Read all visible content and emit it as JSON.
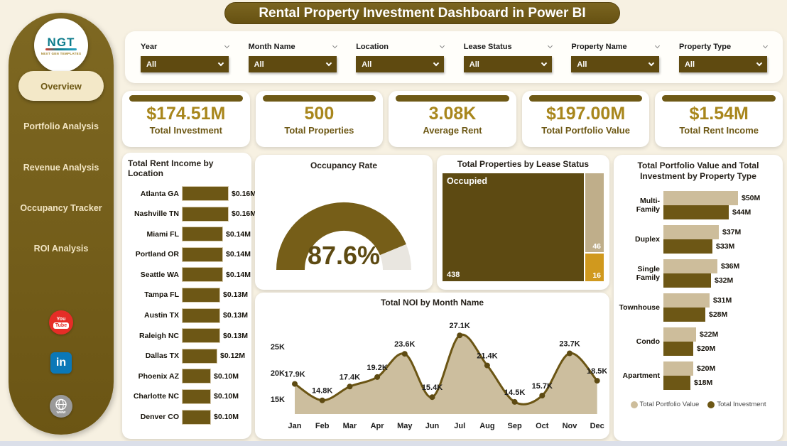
{
  "title": "Rental Property Investment Dashboard in Power BI",
  "logo": {
    "text": "NGT",
    "subtext": "NEXT GEN TEMPLATES"
  },
  "sidebar": {
    "items": [
      {
        "label": "Overview",
        "active": true
      },
      {
        "label": "Portfolio Analysis",
        "active": false
      },
      {
        "label": "Revenue Analysis",
        "active": false
      },
      {
        "label": "Occupancy Tracker",
        "active": false
      },
      {
        "label": "ROI Analysis",
        "active": false
      }
    ],
    "social": [
      {
        "name": "youtube",
        "you": "You",
        "tube": "Tube"
      },
      {
        "name": "linkedin",
        "text": "in"
      },
      {
        "name": "website",
        "text": "www"
      }
    ]
  },
  "filters": [
    {
      "label": "Year",
      "value": "All"
    },
    {
      "label": "Month Name",
      "value": "All"
    },
    {
      "label": "Location",
      "value": "All"
    },
    {
      "label": "Lease Status",
      "value": "All"
    },
    {
      "label": "Property Name",
      "value": "All"
    },
    {
      "label": "Property Type",
      "value": "All"
    }
  ],
  "kpis": [
    {
      "value": "$174.51M",
      "label": "Total Investment"
    },
    {
      "value": "500",
      "label": "Total Properties"
    },
    {
      "value": "3.08K",
      "label": "Average Rent"
    },
    {
      "value": "$197.00M",
      "label": "Total Portfolio Value"
    },
    {
      "value": "$1.54M",
      "label": "Total Rent Income"
    }
  ],
  "colors": {
    "dark_gold": "#76601a",
    "deep_gold": "#5f4a10",
    "gold_text": "#a8861c",
    "tan": "#cdbd9b",
    "orange": "#d0991e",
    "cream_bg": "#f7f1e2",
    "active_pill": "#f3e8c8",
    "gauge_track": "#e9e6e0"
  },
  "chart_data": [
    {
      "id": "rent_by_location",
      "type": "bar",
      "orientation": "horizontal",
      "title": "Total Rent Income by Location",
      "categories": [
        "Atlanta GA",
        "Nashville TN",
        "Miami FL",
        "Portland OR",
        "Seattle WA",
        "Tampa FL",
        "Austin TX",
        "Raleigh NC",
        "Dallas TX",
        "Phoenix AZ",
        "Charlotte NC",
        "Denver CO"
      ],
      "values": [
        0.16,
        0.16,
        0.14,
        0.14,
        0.14,
        0.13,
        0.13,
        0.13,
        0.12,
        0.1,
        0.1,
        0.1
      ],
      "labels": [
        "$0.16M",
        "$0.16M",
        "$0.14M",
        "$0.14M",
        "$0.14M",
        "$0.13M",
        "$0.13M",
        "$0.13M",
        "$0.12M",
        "$0.10M",
        "$0.10M",
        "$0.10M"
      ],
      "xlim": [
        0,
        0.16
      ],
      "bar_color": "#6d5715"
    },
    {
      "id": "occupancy_gauge",
      "type": "gauge",
      "title": "Occupancy Rate",
      "value": 87.6,
      "min": 0,
      "max": 100,
      "label": "87.6%",
      "fill_color": "#765e18",
      "track_color": "#e9e6e0"
    },
    {
      "id": "lease_treemap",
      "type": "treemap",
      "title": "Total Properties by Lease Status",
      "items": [
        {
          "name": "Occupied",
          "value": 438,
          "color": "#5d4a12"
        },
        {
          "name": "",
          "value": 46,
          "color": "#bfae8a"
        },
        {
          "name": "",
          "value": 16,
          "color": "#d0991e"
        }
      ]
    },
    {
      "id": "noi_by_month",
      "type": "area",
      "title": "Total NOI by Month Name",
      "categories": [
        "Jan",
        "Feb",
        "Mar",
        "Apr",
        "May",
        "Jun",
        "Jul",
        "Aug",
        "Sep",
        "Oct",
        "Nov",
        "Dec"
      ],
      "values": [
        17.9,
        14.8,
        17.4,
        19.2,
        23.6,
        15.4,
        27.1,
        21.4,
        14.5,
        15.7,
        23.7,
        18.5
      ],
      "labels": [
        "17.9K",
        "14.8K",
        "17.4K",
        "19.2K",
        "23.6K",
        "15.4K",
        "27.1K",
        "21.4K",
        "14.5K",
        "15.7K",
        "23.7K",
        "18.5K"
      ],
      "yticks": [
        {
          "v": 15,
          "label": "15K"
        },
        {
          "v": 20,
          "label": "20K"
        },
        {
          "v": 25,
          "label": "25K"
        }
      ],
      "ylim": [
        12.2,
        28.6
      ],
      "area_color": "#c9bb99",
      "line_color": "#6b5514",
      "dot_color": "#5d4a12"
    },
    {
      "id": "portfolio_by_type",
      "type": "grouped_bar",
      "orientation": "horizontal",
      "title": "Total Portfolio Value and Total Investment by Property Type",
      "categories": [
        "Multi-Family",
        "Duplex",
        "Single Family",
        "Townhouse",
        "Condo",
        "Apartment"
      ],
      "series": [
        {
          "name": "Total Portfolio Value",
          "color": "#cdbd9b",
          "values": [
            50,
            37,
            36,
            31,
            22,
            20
          ],
          "labels": [
            "$50M",
            "$37M",
            "$36M",
            "$31M",
            "$22M",
            "$20M"
          ]
        },
        {
          "name": "Total Investment",
          "color": "#6d5715",
          "values": [
            44,
            33,
            32,
            28,
            20,
            18
          ],
          "labels": [
            "$44M",
            "$33M",
            "$32M",
            "$28M",
            "$20M",
            "$18M"
          ]
        }
      ],
      "xlim": [
        0,
        50
      ],
      "legend_position": "bottom"
    }
  ]
}
